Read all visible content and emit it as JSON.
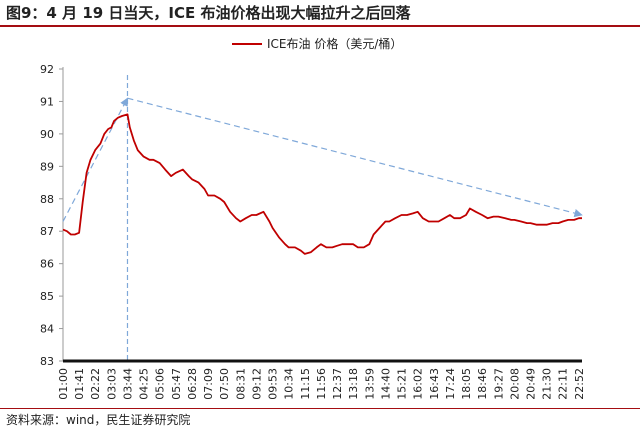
{
  "title": "图9：4 月 19 日当天，ICE 布油价格出现大幅拉升之后回落",
  "source": "资料来源：wind，民生证券研究院",
  "colors": {
    "series": "#c00000",
    "annotation": "#7fa8d9",
    "title_rule": "#a40d12",
    "axis": "#222222"
  },
  "chart_data": {
    "type": "line",
    "title": "",
    "xlabel": "",
    "ylabel": "",
    "ylim": [
      83,
      92
    ],
    "yticks": [
      83,
      84,
      85,
      86,
      87,
      88,
      89,
      90,
      91,
      92
    ],
    "x_ticks": [
      "01:00",
      "01:41",
      "02:22",
      "03:03",
      "03:44",
      "04:25",
      "05:06",
      "05:47",
      "06:28",
      "07:09",
      "07:50",
      "08:31",
      "09:12",
      "09:53",
      "10:34",
      "11:15",
      "11:56",
      "12:37",
      "13:18",
      "13:59",
      "14:40",
      "15:21",
      "16:02",
      "16:43",
      "17:24",
      "18:05",
      "18:46",
      "19:27",
      "20:08",
      "20:49",
      "21:30",
      "22:11",
      "22:52"
    ],
    "legend": {
      "position": "top-center",
      "entries": [
        "ICE布油 价格（美元/桶）"
      ]
    },
    "grid": false,
    "series": [
      {
        "name": "ICE布油 价格（美元/桶）",
        "x": [
          "01:00",
          "01:10",
          "01:20",
          "01:30",
          "01:41",
          "01:50",
          "02:00",
          "02:10",
          "02:22",
          "02:35",
          "02:45",
          "02:55",
          "03:03",
          "03:10",
          "03:20",
          "03:30",
          "03:44",
          "03:50",
          "04:00",
          "04:10",
          "04:25",
          "04:40",
          "04:50",
          "05:06",
          "05:20",
          "05:35",
          "05:47",
          "06:05",
          "06:20",
          "06:28",
          "06:45",
          "07:00",
          "07:09",
          "07:25",
          "07:40",
          "07:50",
          "08:05",
          "08:20",
          "08:31",
          "08:45",
          "09:00",
          "09:12",
          "09:30",
          "09:45",
          "09:53",
          "10:10",
          "10:25",
          "10:34",
          "10:50",
          "11:05",
          "11:15",
          "11:30",
          "11:45",
          "11:56",
          "12:10",
          "12:25",
          "12:37",
          "12:50",
          "13:05",
          "13:18",
          "13:30",
          "13:45",
          "13:59",
          "14:10",
          "14:25",
          "14:40",
          "14:50",
          "15:05",
          "15:21",
          "15:35",
          "15:50",
          "16:02",
          "16:15",
          "16:30",
          "16:43",
          "16:55",
          "17:10",
          "17:24",
          "17:35",
          "17:50",
          "18:05",
          "18:15",
          "18:30",
          "18:46",
          "19:00",
          "19:15",
          "19:27",
          "19:45",
          "20:00",
          "20:08",
          "20:25",
          "20:40",
          "20:49",
          "21:05",
          "21:20",
          "21:30",
          "21:45",
          "22:00",
          "22:11",
          "22:25",
          "22:40",
          "22:52",
          "23:00"
        ],
        "values": [
          87.05,
          87.0,
          86.9,
          86.9,
          86.95,
          87.9,
          88.8,
          89.2,
          89.5,
          89.7,
          90.0,
          90.15,
          90.2,
          90.4,
          90.5,
          90.55,
          90.6,
          90.2,
          89.8,
          89.5,
          89.3,
          89.2,
          89.2,
          89.1,
          88.9,
          88.7,
          88.8,
          88.9,
          88.7,
          88.6,
          88.5,
          88.3,
          88.1,
          88.1,
          88.0,
          87.9,
          87.6,
          87.4,
          87.3,
          87.4,
          87.5,
          87.5,
          87.6,
          87.3,
          87.1,
          86.8,
          86.6,
          86.5,
          86.5,
          86.4,
          86.3,
          86.35,
          86.5,
          86.6,
          86.5,
          86.5,
          86.55,
          86.6,
          86.6,
          86.6,
          86.5,
          86.5,
          86.6,
          86.9,
          87.1,
          87.3,
          87.3,
          87.4,
          87.5,
          87.5,
          87.55,
          87.6,
          87.4,
          87.3,
          87.3,
          87.3,
          87.4,
          87.5,
          87.4,
          87.4,
          87.5,
          87.7,
          87.6,
          87.5,
          87.4,
          87.45,
          87.45,
          87.4,
          87.35,
          87.35,
          87.3,
          87.25,
          87.25,
          87.2,
          87.2,
          87.2,
          87.25,
          87.25,
          87.3,
          87.35,
          87.35,
          87.4,
          87.4
        ]
      }
    ],
    "annotations": {
      "vertical_line_at": "03:44",
      "arrows": [
        {
          "from": {
            "x": "01:00",
            "y": 87.3
          },
          "to": {
            "x": "03:44",
            "y": 91.1
          }
        },
        {
          "from": {
            "x": "03:44",
            "y": 91.1
          },
          "to": {
            "x": "23:00",
            "y": 87.5
          }
        }
      ]
    }
  }
}
